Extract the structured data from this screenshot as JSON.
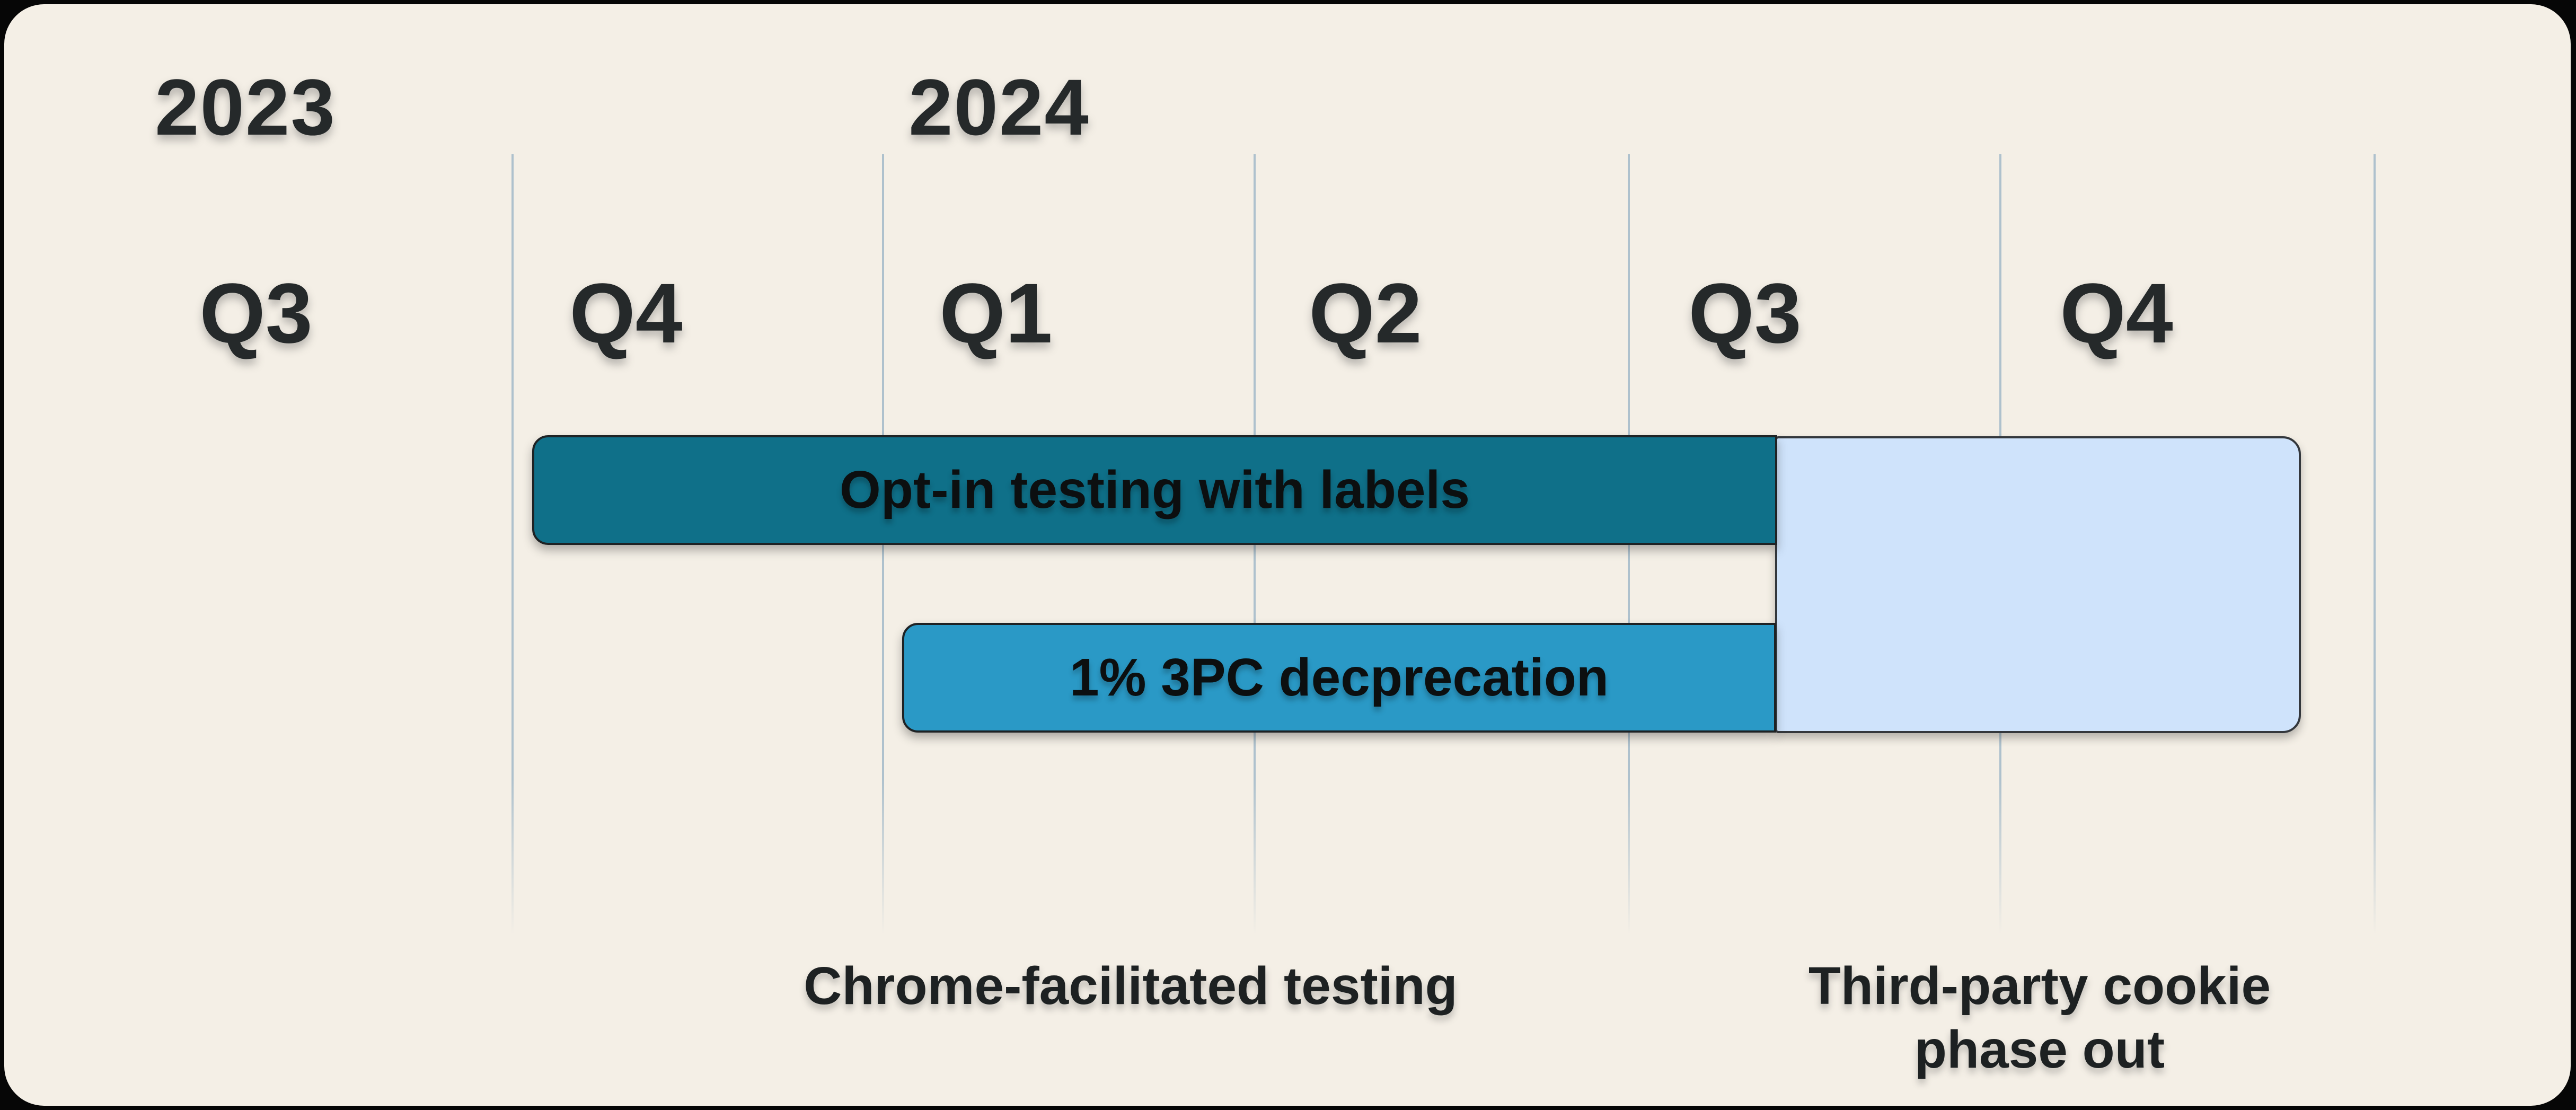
{
  "colors": {
    "background": "#060606",
    "card": "#f4efe6",
    "gridline": "#aec1cd",
    "heading_text": "#25292a",
    "bar_teal": "#0f7089",
    "bar_blue": "#2a99c6",
    "phase_box_fill": "#cfe3fb",
    "bar_text": "#0c0f10"
  },
  "years": [
    {
      "label": "2023"
    },
    {
      "label": "2024"
    }
  ],
  "quarters": [
    {
      "label": "Q3",
      "year": "2023"
    },
    {
      "label": "Q4",
      "year": "2023"
    },
    {
      "label": "Q1",
      "year": "2024"
    },
    {
      "label": "Q2",
      "year": "2024"
    },
    {
      "label": "Q3",
      "year": "2024"
    },
    {
      "label": "Q4",
      "year": "2024"
    }
  ],
  "bars": [
    {
      "label": "Opt-in testing with labels"
    },
    {
      "label": "1% 3PC decprecation"
    }
  ],
  "captions": {
    "testing": "Chrome-facilitated testing",
    "phase_out_lines": [
      "Third-party cookie",
      "phase out"
    ]
  },
  "chart_data": {
    "type": "bar",
    "subtype": "gantt_timeline",
    "title": "",
    "x_axis": {
      "unit": "quarter",
      "categories": [
        "2023 Q3",
        "2023 Q4",
        "2024 Q1",
        "2024 Q2",
        "2024 Q3",
        "2024 Q4"
      ],
      "gridlines": true,
      "year_headers": [
        {
          "year": "2023",
          "starts_at": "2023 Q3"
        },
        {
          "year": "2024",
          "starts_at": "2024 Q1"
        }
      ]
    },
    "series": [
      {
        "name": "Opt-in testing with labels",
        "row": 1,
        "start": "2023 Q4",
        "end": "2024 Q3",
        "end_fraction_into_quarter": 0.4,
        "color": "#0f7089",
        "text_color": "#0c0f10"
      },
      {
        "name": "1% 3PC decprecation",
        "row": 2,
        "start": "2024 Q1",
        "end": "2024 Q3",
        "end_fraction_into_quarter": 0.4,
        "color": "#2a99c6",
        "text_color": "#0c0f10"
      },
      {
        "name": "Third-party cookie phase out",
        "rows": "1-2",
        "start": "2024 Q3",
        "start_fraction_into_quarter": 0.4,
        "end": "2024 Q4",
        "end_fraction_into_quarter": 0.8,
        "color": "#cfe3fb",
        "label_shown_inside": false
      }
    ],
    "annotations": [
      {
        "text": "Chrome-facilitated testing",
        "position": "below timeline under 2024 Q1-Q2"
      },
      {
        "text": "Third-party cookie phase out",
        "position": "below timeline under 2024 Q3-Q4"
      }
    ],
    "legend": false
  }
}
